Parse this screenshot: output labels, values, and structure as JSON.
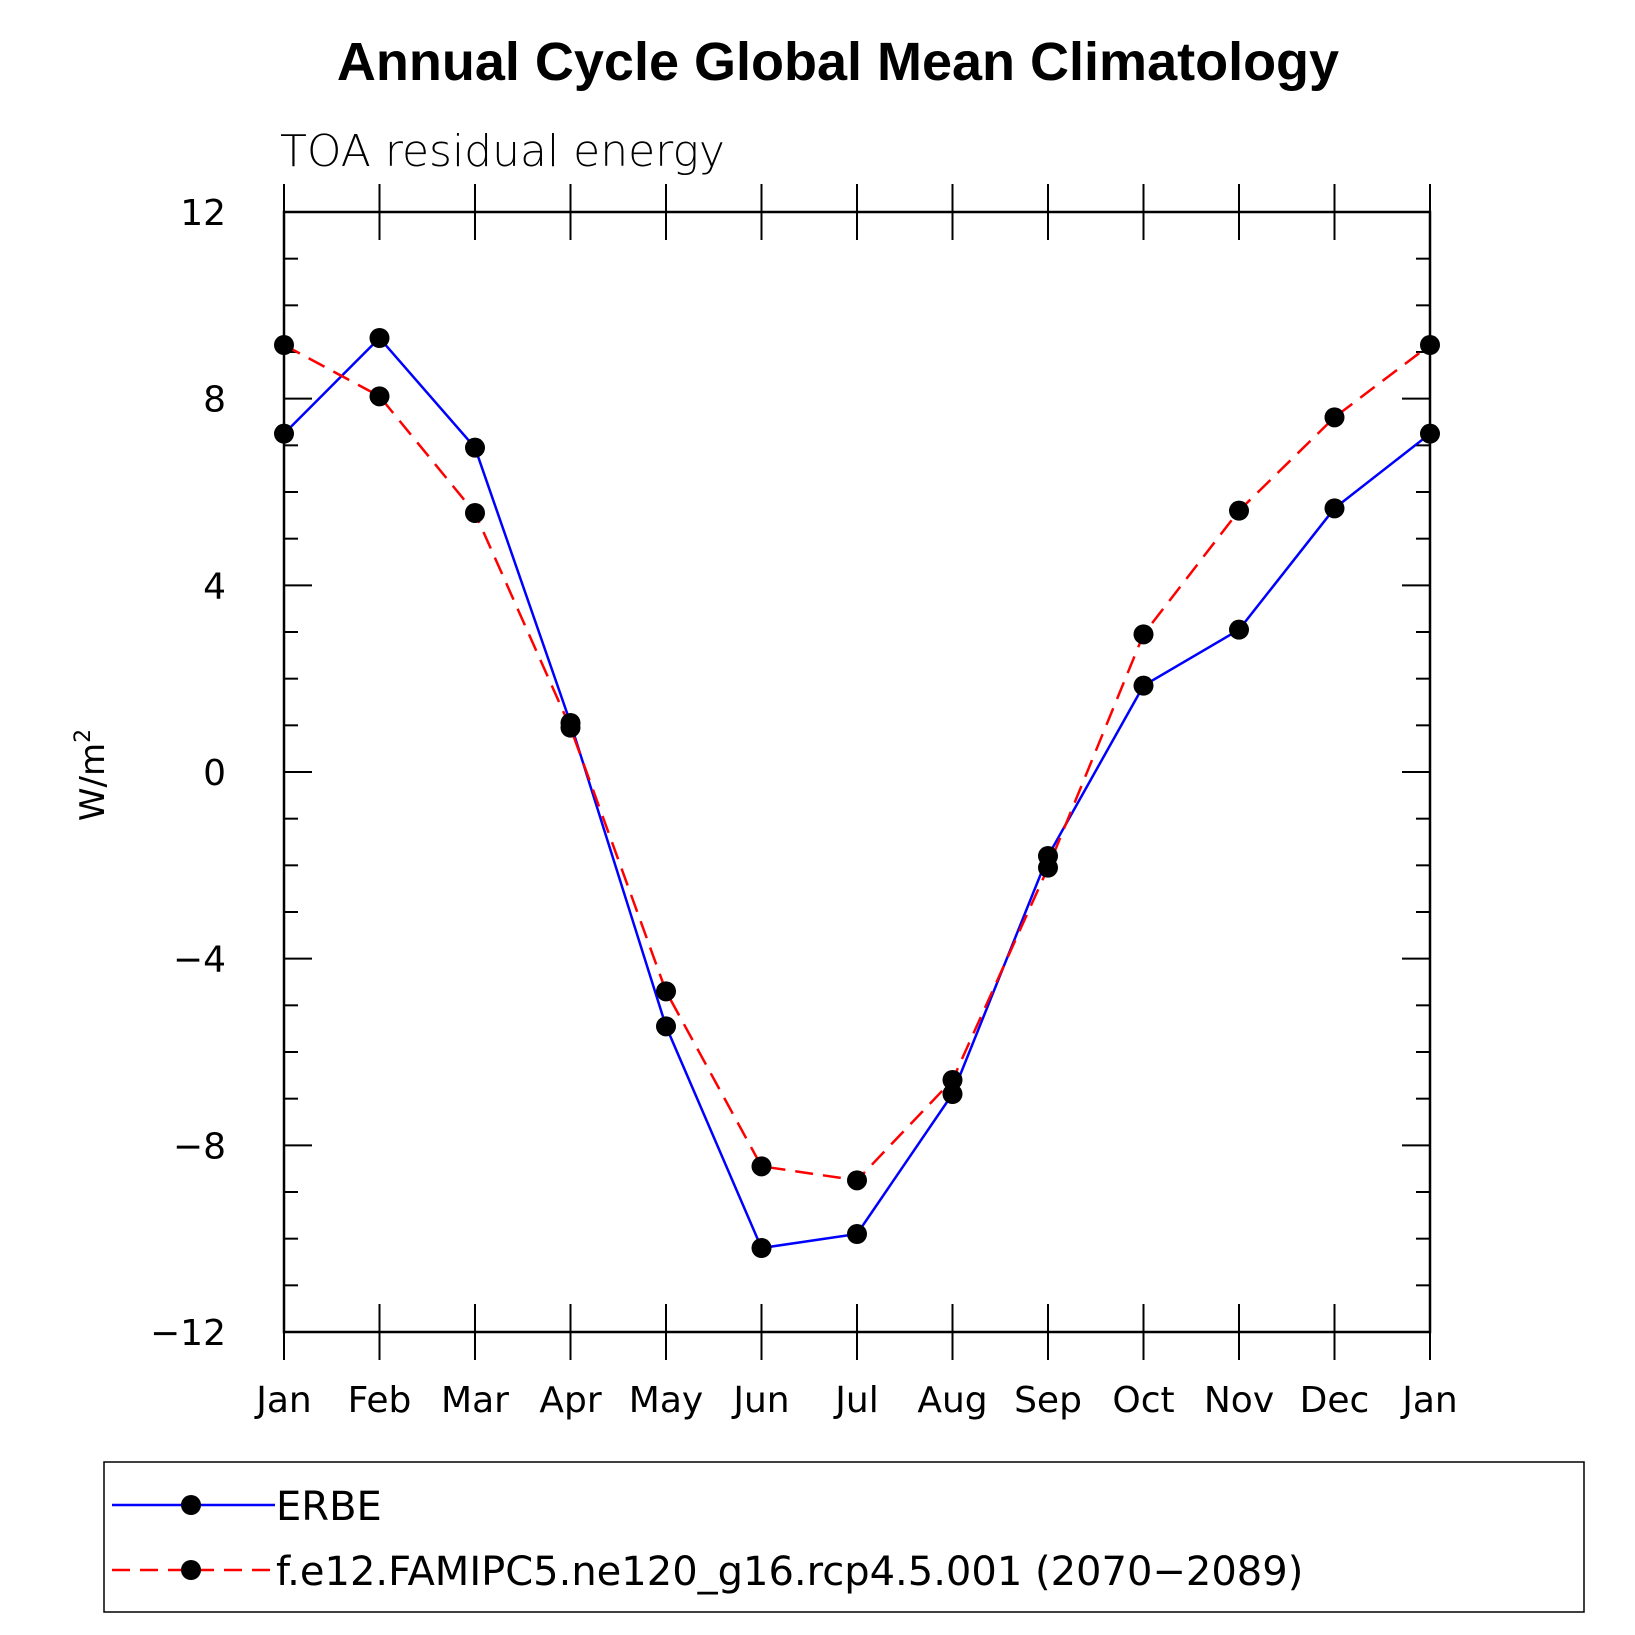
{
  "chart_data": {
    "type": "line",
    "title": "Annual Cycle Global Mean Climatology",
    "subtitle": "TOA residual energy",
    "ylabel": "W/m",
    "ylabel_superscript": "2",
    "xlabel": "",
    "categories": [
      "Jan",
      "Feb",
      "Mar",
      "Apr",
      "May",
      "Jun",
      "Jul",
      "Aug",
      "Sep",
      "Oct",
      "Nov",
      "Dec",
      "Jan"
    ],
    "ylim": [
      -12,
      12
    ],
    "yticks": [
      "−12",
      "−8",
      "−4",
      "0",
      "4",
      "8",
      "12"
    ],
    "grid": false,
    "legend_position": "bottom",
    "series": [
      {
        "name": "ERBE",
        "color": "#0000ff",
        "style": "solid",
        "values": [
          7.25,
          9.3,
          6.95,
          1.05,
          -5.45,
          -10.2,
          -9.9,
          -6.9,
          -1.8,
          1.85,
          3.05,
          5.65,
          7.25
        ]
      },
      {
        "name": "f.e12.FAMIPC5.ne120_g16.rcp4.5.001 (2070−2089)",
        "color": "#ff0000",
        "style": "dashed",
        "values": [
          9.15,
          8.05,
          5.55,
          0.95,
          -4.7,
          -8.45,
          -8.75,
          -6.6,
          -2.05,
          2.95,
          5.6,
          7.6,
          9.15
        ]
      }
    ]
  }
}
